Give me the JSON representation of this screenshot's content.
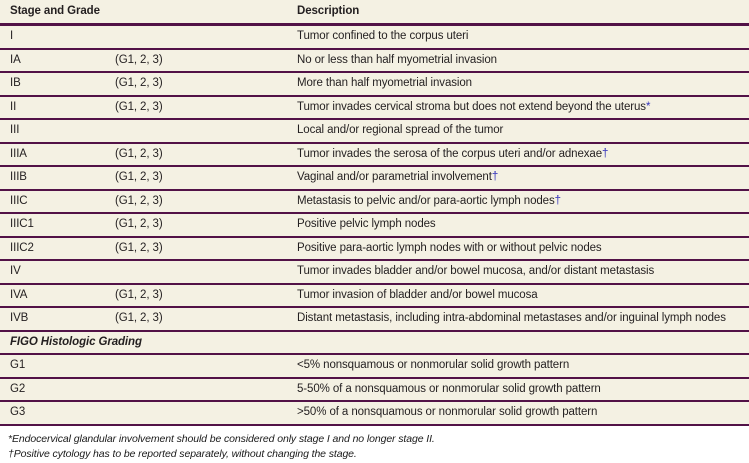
{
  "table": {
    "columns": [
      "Stage and Grade",
      "Description"
    ],
    "staging_rows": [
      {
        "stage": "I",
        "grade": "",
        "description": "Tumor confined to the corpus uteri",
        "marker": ""
      },
      {
        "stage": "IA",
        "grade": "(G1, 2, 3)",
        "description": "No or less than half myometrial invasion",
        "marker": ""
      },
      {
        "stage": "IB",
        "grade": "(G1, 2, 3)",
        "description": "More than half myometrial invasion",
        "marker": ""
      },
      {
        "stage": "II",
        "grade": "(G1, 2, 3)",
        "description": "Tumor invades cervical stroma but does not extend beyond the uterus",
        "marker": "*"
      },
      {
        "stage": "III",
        "grade": "",
        "description": "Local and/or regional spread of the tumor",
        "marker": ""
      },
      {
        "stage": "IIIA",
        "grade": "(G1, 2, 3)",
        "description": "Tumor invades the serosa of the corpus uteri and/or adnexae",
        "marker": "†"
      },
      {
        "stage": "IIIB",
        "grade": "(G1, 2, 3)",
        "description": "Vaginal and/or parametrial involvement",
        "marker": "†"
      },
      {
        "stage": "IIIC",
        "grade": "(G1, 2, 3)",
        "description": "Metastasis to pelvic and/or para-aortic lymph nodes",
        "marker": "†"
      },
      {
        "stage": "IIIC1",
        "grade": "(G1, 2, 3)",
        "description": "Positive pelvic lymph nodes",
        "marker": ""
      },
      {
        "stage": "IIIC2",
        "grade": "(G1, 2, 3)",
        "description": "Positive para-aortic lymph nodes with or without pelvic nodes",
        "marker": ""
      },
      {
        "stage": "IV",
        "grade": "",
        "description": "Tumor invades bladder and/or bowel mucosa, and/or distant metastasis",
        "marker": ""
      },
      {
        "stage": "IVA",
        "grade": "(G1, 2, 3)",
        "description": "Tumor invasion of bladder and/or bowel mucosa",
        "marker": ""
      },
      {
        "stage": "IVB",
        "grade": "(G1, 2, 3)",
        "description": "Distant metastasis, including intra-abdominal metastases and/or inguinal lymph nodes",
        "marker": ""
      }
    ],
    "section_header": "FIGO Histologic Grading",
    "grading_rows": [
      {
        "stage": "G1",
        "grade": "",
        "description": "<5% nonsquamous or nonmorular solid growth pattern",
        "marker": ""
      },
      {
        "stage": "G2",
        "grade": "",
        "description": "5-50% of a nonsquamous or nonmorular solid growth pattern",
        "marker": ""
      },
      {
        "stage": "G3",
        "grade": "",
        "description": ">50% of a nonsquamous or nonmorular solid growth pattern",
        "marker": ""
      }
    ],
    "footnotes": [
      "*Endocervical glandular involvement should be considered only stage I and no longer stage II.",
      "†Positive cytology has to be reported separately, without changing the stage."
    ],
    "colors": {
      "table_background": "#f4f1e3",
      "rule_purple": "#521247",
      "marker_blue": "#3333bb",
      "text": "#231f20"
    }
  }
}
